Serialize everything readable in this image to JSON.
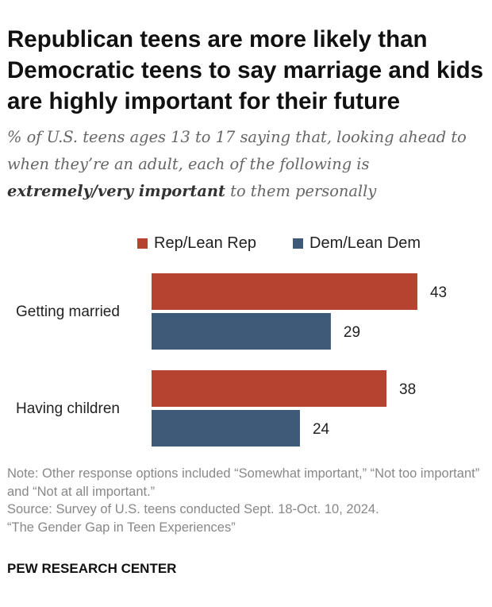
{
  "title": "Republican teens are more likely than Democratic teens to say marriage and kids are highly important for their future",
  "subtitle": {
    "pre": "% of U.S. teens ages 13 to 17 saying that, looking ahead to when they’re an adult, each of the following is ",
    "bold": "extremely/very important",
    "post": " to them personally"
  },
  "colors": {
    "rep": "#b5432f",
    "dem": "#3f5a78"
  },
  "chart_data": {
    "type": "bar",
    "orientation": "horizontal",
    "categories": [
      "Getting married",
      "Having children"
    ],
    "series": [
      {
        "name": "Rep/Lean Rep",
        "values": [
          43,
          38
        ]
      },
      {
        "name": "Dem/Lean Dem",
        "values": [
          29,
          24
        ]
      }
    ],
    "legend_position": "top",
    "grid": false
  },
  "note": "Note: Other response options included “Somewhat important,” “Not too important” and “Not at all important.”",
  "source": "Source: Survey of U.S. teens conducted Sept. 18-Oct. 10, 2024.",
  "report": "“The Gender Gap in Teen Experiences”",
  "brand": "PEW RESEARCH CENTER"
}
